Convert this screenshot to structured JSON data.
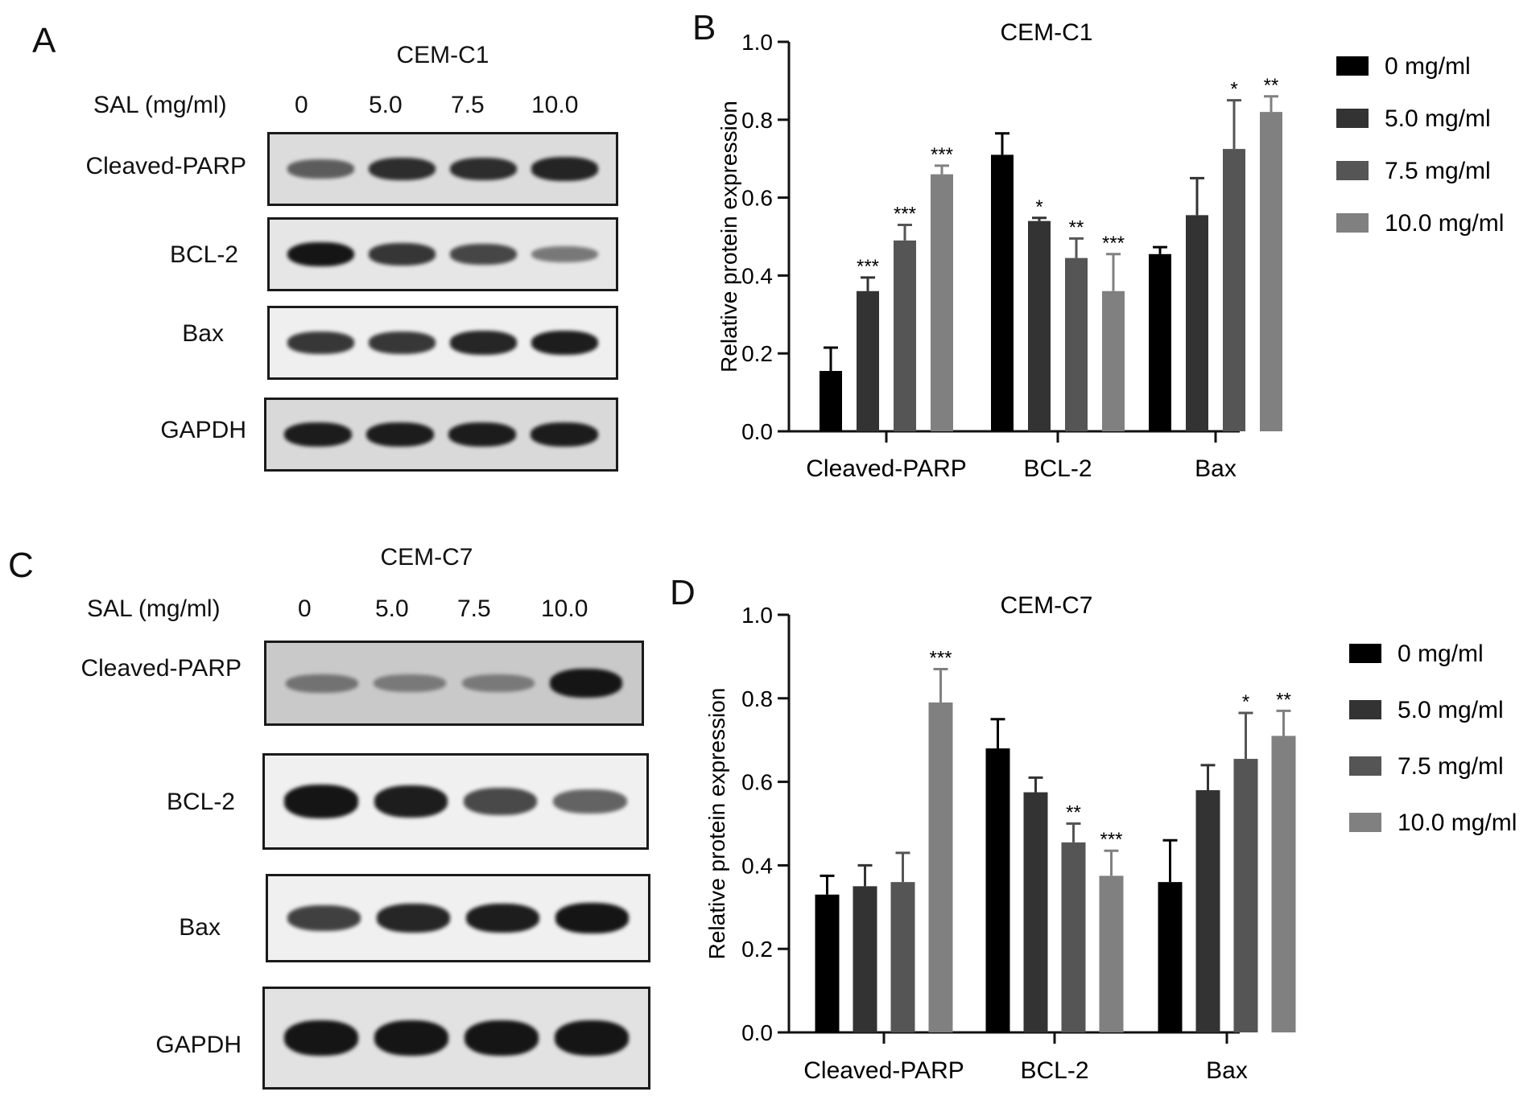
{
  "panel_letters": [
    "A",
    "B",
    "C",
    "D"
  ],
  "blots": [
    {
      "cell_line": "CEM-C1",
      "sal_label": "SAL (mg/ml)",
      "concentrations": [
        "0",
        "5.0",
        "7.5",
        "10.0"
      ],
      "rows": [
        {
          "name": "Cleaved-PARP",
          "background": "#dcdcdc",
          "intensity": [
            0.55,
            0.85,
            0.85,
            0.9
          ]
        },
        {
          "name": "BCL-2",
          "background": "#e6e6e6",
          "intensity": [
            1.0,
            0.8,
            0.7,
            0.4
          ]
        },
        {
          "name": "Bax",
          "background": "#efefef",
          "intensity": [
            0.8,
            0.8,
            0.9,
            0.95
          ]
        },
        {
          "name": "GAPDH",
          "background": "#d9d9d9",
          "intensity": [
            0.95,
            0.95,
            0.95,
            0.95
          ]
        }
      ]
    },
    {
      "cell_line": "CEM-C7",
      "sal_label": "SAL (mg/ml)",
      "concentrations": [
        "0",
        "5.0",
        "7.5",
        "10.0"
      ],
      "rows": [
        {
          "name": "Cleaved-PARP",
          "background": "#c9c9c9",
          "intensity": [
            0.35,
            0.3,
            0.3,
            1.0
          ]
        },
        {
          "name": "BCL-2",
          "background": "#f0f0f0",
          "intensity": [
            1.0,
            0.95,
            0.7,
            0.55
          ]
        },
        {
          "name": "Bax",
          "background": "#f0f0f0",
          "intensity": [
            0.75,
            0.9,
            0.95,
            1.0
          ]
        },
        {
          "name": "GAPDH",
          "background": "#e2e2e2",
          "intensity": [
            1.0,
            1.0,
            1.0,
            1.0
          ]
        }
      ]
    }
  ],
  "chart_data": [
    {
      "type": "bar",
      "title": "CEM-C1",
      "ylabel": "Relative protein expression",
      "xlabel": "",
      "ylim": [
        0,
        1.0
      ],
      "yticks": [
        "0.0",
        "0.2",
        "0.4",
        "0.6",
        "0.8",
        "1.0"
      ],
      "grid": false,
      "legend": "right",
      "categories": [
        "Cleaved-PARP",
        "BCL-2",
        "Bax"
      ],
      "series": [
        {
          "name": "0 mg/ml",
          "color": "#000000",
          "values": [
            0.155,
            0.71,
            0.455
          ],
          "errors": [
            0.06,
            0.055,
            0.018
          ],
          "significance": [
            "",
            "",
            ""
          ]
        },
        {
          "name": "5.0 mg/ml",
          "color": "#333333",
          "values": [
            0.36,
            0.54,
            0.555
          ],
          "errors": [
            0.035,
            0.008,
            0.095
          ],
          "significance": [
            "***",
            "*",
            ""
          ]
        },
        {
          "name": "7.5 mg/ml",
          "color": "#555555",
          "values": [
            0.49,
            0.445,
            0.725
          ],
          "errors": [
            0.04,
            0.05,
            0.125
          ],
          "significance": [
            "***",
            "**",
            "*"
          ]
        },
        {
          "name": "10.0 mg/ml",
          "color": "#808080",
          "values": [
            0.66,
            0.36,
            0.82
          ],
          "errors": [
            0.022,
            0.095,
            0.04
          ],
          "significance": [
            "***",
            "***",
            "**"
          ]
        }
      ]
    },
    {
      "type": "bar",
      "title": "CEM-C7",
      "ylabel": "Relative protein expression",
      "xlabel": "",
      "ylim": [
        0,
        1.0
      ],
      "yticks": [
        "0.0",
        "0.2",
        "0.4",
        "0.6",
        "0.8",
        "1.0"
      ],
      "grid": false,
      "legend": "right",
      "categories": [
        "Cleaved-PARP",
        "BCL-2",
        "Bax"
      ],
      "series": [
        {
          "name": "0 mg/ml",
          "color": "#000000",
          "values": [
            0.33,
            0.68,
            0.36
          ],
          "errors": [
            0.045,
            0.07,
            0.1
          ],
          "significance": [
            "",
            "",
            ""
          ]
        },
        {
          "name": "5.0 mg/ml",
          "color": "#333333",
          "values": [
            0.35,
            0.575,
            0.58
          ],
          "errors": [
            0.05,
            0.035,
            0.06
          ],
          "significance": [
            "",
            "",
            ""
          ]
        },
        {
          "name": "7.5 mg/ml",
          "color": "#555555",
          "values": [
            0.36,
            0.455,
            0.655
          ],
          "errors": [
            0.07,
            0.045,
            0.11
          ],
          "significance": [
            "",
            "**",
            "*"
          ]
        },
        {
          "name": "10.0 mg/ml",
          "color": "#808080",
          "values": [
            0.79,
            0.375,
            0.71
          ],
          "errors": [
            0.08,
            0.06,
            0.06
          ],
          "significance": [
            "***",
            "***",
            "**"
          ]
        }
      ]
    }
  ]
}
